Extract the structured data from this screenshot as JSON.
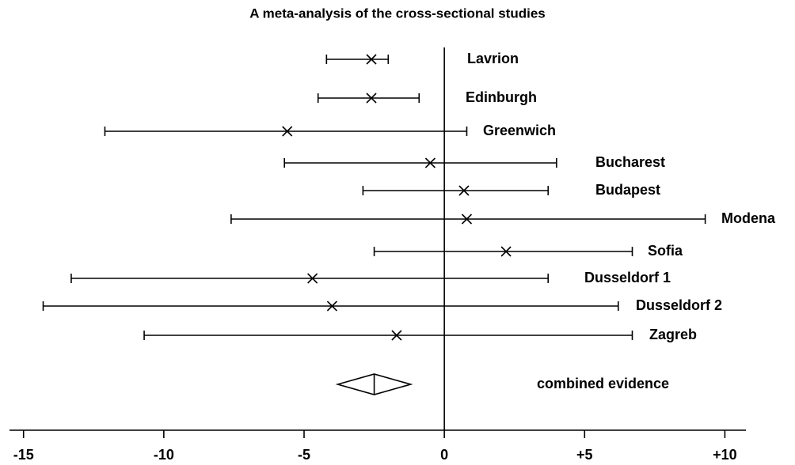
{
  "chart_data": {
    "type": "forest",
    "title": "A meta-analysis of the cross-sectional studies",
    "categories": [
      "Lavrion",
      "Edinburgh",
      "Greenwich",
      "Bucharest",
      "Budapest",
      "Modena",
      "Sofia",
      "Dusseldorf 1",
      "Dusseldorf 2",
      "Zagreb"
    ],
    "values": [
      -2.6,
      -2.6,
      -5.6,
      -0.5,
      0.7,
      0.8,
      2.2,
      -4.7,
      -4.0,
      -1.7
    ],
    "lower": [
      -4.2,
      -4.5,
      -12.1,
      -5.7,
      -2.9,
      -7.6,
      -2.5,
      -13.3,
      -14.3,
      -10.7
    ],
    "upper": [
      -2.0,
      -0.9,
      0.8,
      4.0,
      3.7,
      9.3,
      6.7,
      3.7,
      6.2,
      6.7
    ],
    "combined": {
      "label": "combined evidence",
      "value": -2.5,
      "lower": -3.8,
      "upper": -1.2
    },
    "xlim": [
      -15.5,
      10.75
    ],
    "xticks": [
      -15,
      -10,
      -5,
      0,
      {
        "value": 5,
        "label": "+5"
      },
      {
        "value": 10,
        "label": "+10"
      }
    ]
  }
}
